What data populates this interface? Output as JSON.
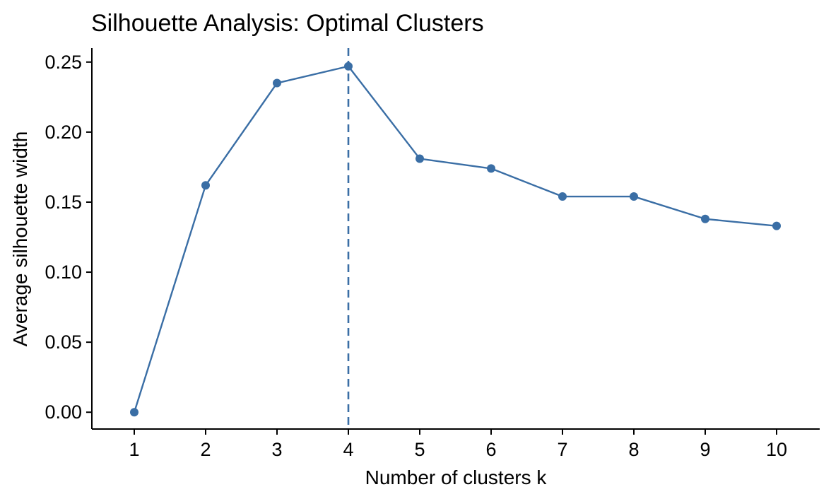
{
  "chart_data": {
    "type": "line",
    "title": "Silhouette Analysis: Optimal Clusters",
    "xlabel": "Number of clusters k",
    "ylabel": "Average silhouette width",
    "categories": [
      "1",
      "2",
      "3",
      "4",
      "5",
      "6",
      "7",
      "8",
      "9",
      "10"
    ],
    "series": [
      {
        "values": [
          0.0,
          0.162,
          0.235,
          0.247,
          0.181,
          0.174,
          0.154,
          0.154,
          0.138,
          0.133
        ],
        "color": "#3a6ea5"
      }
    ],
    "ylim": [
      -0.012,
      0.26
    ],
    "yticks": [
      0.0,
      0.05,
      0.1,
      0.15,
      0.2,
      0.25
    ],
    "ytick_labels": [
      "0.00",
      "0.05",
      "0.10",
      "0.15",
      "0.20",
      "0.25"
    ],
    "reference_line": {
      "x": "4",
      "style": "dashed",
      "color": "#3a6ea5"
    },
    "grid": false,
    "legend": "none"
  }
}
